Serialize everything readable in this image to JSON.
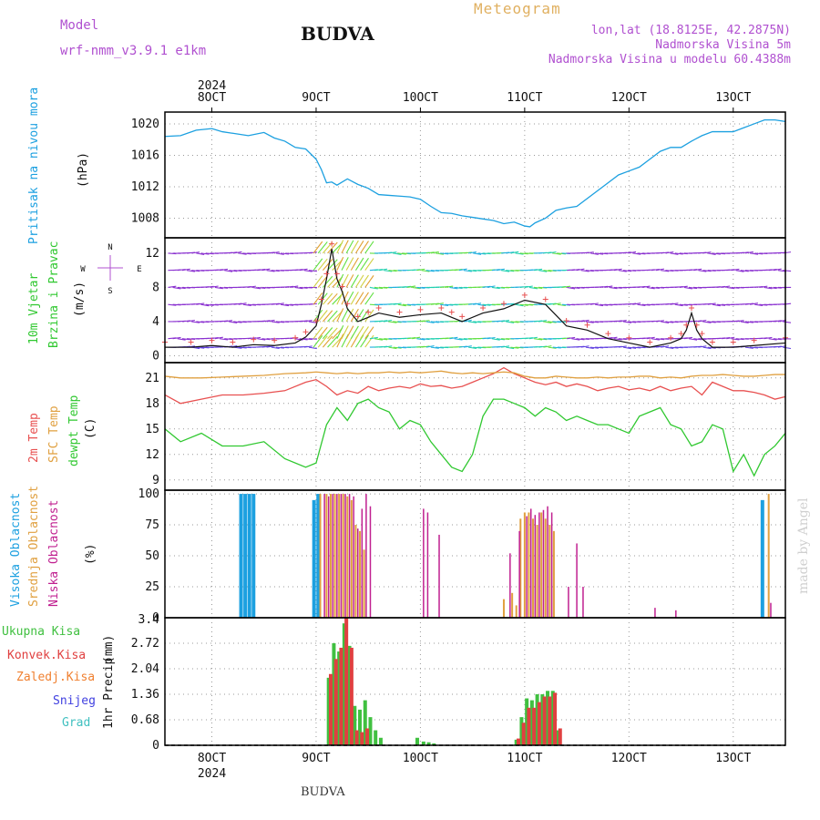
{
  "header": {
    "model_label": "Model",
    "model_name": "wrf-nmm_v3.9.1 e1km",
    "title": "BUDVA",
    "meteogram": "Meteogram",
    "lonlat": "lon,lat (18.8125E, 42.2875N)",
    "elevation": "Nadmorska Visina 5m",
    "model_elevation": "Nadmorska Visina u modelu 60.4388m"
  },
  "footer": {
    "station": "BUDVA",
    "credit": "made by Angel"
  },
  "x_axis": {
    "year": "2024",
    "ticks": [
      "8OCT",
      "9OCT",
      "10OCT",
      "11OCT",
      "12OCT",
      "13OCT"
    ],
    "tick_days": [
      8,
      9,
      10,
      11,
      12,
      13
    ],
    "start_day": 7.55,
    "end_day": 13.5
  },
  "colors": {
    "pressure": "#1ca0e0",
    "temp2m": "#e85050",
    "sfc": "#e0a040",
    "dewpt": "#30c830",
    "high_cloud": "#1ca0e0",
    "mid_cloud": "#e0a040",
    "low_cloud": "#c02090",
    "total_precip": "#40c040",
    "conv_precip": "#e04040",
    "frozen_precip": "#f08030",
    "snow": "#4040e0",
    "graupel": "#40c0c0",
    "wind_axis": "#b050d0"
  },
  "chart_data": [
    {
      "type": "line",
      "name": "pressure-panel",
      "ylabel": "Pritisak na nivou mora",
      "unit": "(hPa)",
      "yticks": [
        1008,
        1012,
        1016,
        1020
      ],
      "ylim": [
        1005.5,
        1021.5
      ],
      "x": [
        7.55,
        7.7,
        7.85,
        8.0,
        8.1,
        8.2,
        8.35,
        8.5,
        8.6,
        8.7,
        8.8,
        8.9,
        9.0,
        9.05,
        9.1,
        9.15,
        9.2,
        9.3,
        9.4,
        9.5,
        9.6,
        9.7,
        9.8,
        9.9,
        10.0,
        10.1,
        10.2,
        10.3,
        10.4,
        10.5,
        10.6,
        10.7,
        10.8,
        10.9,
        11.0,
        11.05,
        11.1,
        11.2,
        11.3,
        11.4,
        11.5,
        11.6,
        11.7,
        11.8,
        11.9,
        12.0,
        12.1,
        12.2,
        12.3,
        12.4,
        12.5,
        12.6,
        12.7,
        12.8,
        12.9,
        13.0,
        13.1,
        13.2,
        13.3,
        13.4,
        13.5
      ],
      "series": [
        {
          "values": [
            1018.4,
            1018.5,
            1019.2,
            1019.4,
            1019.0,
            1018.8,
            1018.5,
            1018.9,
            1018.2,
            1017.8,
            1017.0,
            1016.8,
            1015.5,
            1014.2,
            1012.5,
            1012.6,
            1012.2,
            1013.0,
            1012.3,
            1011.8,
            1011.0,
            1010.9,
            1010.8,
            1010.7,
            1010.4,
            1009.5,
            1008.7,
            1008.6,
            1008.3,
            1008.1,
            1007.9,
            1007.7,
            1007.3,
            1007.5,
            1007.0,
            1006.9,
            1007.4,
            1008.0,
            1009.0,
            1009.3,
            1009.5,
            1010.5,
            1011.5,
            1012.5,
            1013.5,
            1014.0,
            1014.5,
            1015.5,
            1016.5,
            1017.0,
            1017.0,
            1017.8,
            1018.5,
            1019.0,
            1019.0,
            1019.0,
            1019.5,
            1020.0,
            1020.5,
            1020.5,
            1020.3
          ]
        }
      ]
    },
    {
      "type": "line",
      "name": "wind-panel",
      "ylabel_1": "10m Vjetar",
      "ylabel_2": "Brzina i Pravac",
      "unit": "(m/s)",
      "compass": {
        "n": "N",
        "s": "S",
        "w": "W",
        "e": "E"
      },
      "yticks": [
        0,
        4,
        8,
        12
      ],
      "ylim": [
        -0.8,
        13.8
      ],
      "x": [
        7.55,
        7.8,
        8.0,
        8.2,
        8.4,
        8.6,
        8.8,
        8.9,
        9.0,
        9.05,
        9.1,
        9.15,
        9.2,
        9.25,
        9.3,
        9.4,
        9.5,
        9.6,
        9.8,
        10.0,
        10.2,
        10.3,
        10.4,
        10.6,
        10.8,
        11.0,
        11.2,
        11.4,
        11.6,
        11.8,
        12.0,
        12.2,
        12.4,
        12.5,
        12.55,
        12.6,
        12.65,
        12.7,
        12.8,
        13.0,
        13.2,
        13.5
      ],
      "series": [
        {
          "name": "speed",
          "values": [
            1.0,
            1.0,
            1.2,
            1.0,
            1.3,
            1.2,
            1.5,
            2.2,
            3.5,
            6.0,
            9.0,
            12.5,
            9.0,
            7.5,
            5.5,
            4.0,
            4.5,
            5.0,
            4.5,
            4.8,
            5.0,
            4.5,
            4.0,
            5.0,
            5.5,
            6.5,
            6.0,
            3.5,
            3.0,
            2.0,
            1.5,
            1.0,
            1.5,
            2.0,
            3.0,
            5.0,
            3.0,
            2.0,
            1.0,
            1.0,
            1.2,
            1.5
          ]
        }
      ]
    },
    {
      "type": "line",
      "name": "temperature-panel",
      "ylabel_1": "2m Temp",
      "ylabel_2": "SFC Temp",
      "ylabel_3": "dewpt Temp",
      "unit": "(C)",
      "yticks": [
        9,
        12,
        15,
        18,
        21
      ],
      "ylim": [
        7.8,
        22.8
      ],
      "x": [
        7.55,
        7.7,
        7.9,
        8.1,
        8.3,
        8.5,
        8.7,
        8.9,
        9.0,
        9.1,
        9.2,
        9.3,
        9.4,
        9.5,
        9.6,
        9.7,
        9.8,
        9.9,
        10.0,
        10.1,
        10.2,
        10.3,
        10.4,
        10.5,
        10.6,
        10.7,
        10.8,
        10.9,
        11.0,
        11.1,
        11.2,
        11.3,
        11.4,
        11.5,
        11.6,
        11.7,
        11.8,
        11.9,
        12.0,
        12.1,
        12.2,
        12.3,
        12.4,
        12.5,
        12.6,
        12.7,
        12.8,
        12.9,
        13.0,
        13.1,
        13.2,
        13.3,
        13.4,
        13.5
      ],
      "series": [
        {
          "name": "2m Temp",
          "values": [
            19.0,
            18.0,
            18.5,
            19.0,
            19.0,
            19.2,
            19.5,
            20.5,
            20.8,
            20.0,
            19.0,
            19.5,
            19.2,
            20.0,
            19.5,
            19.8,
            20.0,
            19.8,
            20.3,
            20.0,
            20.1,
            19.8,
            20.0,
            20.5,
            21.0,
            21.5,
            22.2,
            21.5,
            21.0,
            20.5,
            20.2,
            20.5,
            20.0,
            20.3,
            20.0,
            19.5,
            19.8,
            20.0,
            19.6,
            19.8,
            19.5,
            20.0,
            19.5,
            19.8,
            20.0,
            19.0,
            20.5,
            20.0,
            19.5,
            19.5,
            19.3,
            19.0,
            18.5,
            18.8
          ]
        },
        {
          "name": "SFC Temp",
          "values": [
            21.2,
            21.0,
            21.0,
            21.1,
            21.2,
            21.3,
            21.5,
            21.6,
            21.7,
            21.6,
            21.5,
            21.6,
            21.5,
            21.6,
            21.6,
            21.7,
            21.6,
            21.7,
            21.6,
            21.7,
            21.8,
            21.6,
            21.5,
            21.6,
            21.5,
            21.6,
            21.7,
            21.6,
            21.2,
            21.0,
            21.0,
            21.2,
            21.1,
            21.0,
            21.0,
            21.1,
            21.0,
            21.1,
            21.1,
            21.2,
            21.2,
            21.0,
            21.1,
            21.0,
            21.2,
            21.3,
            21.3,
            21.4,
            21.3,
            21.2,
            21.2,
            21.3,
            21.4,
            21.4
          ]
        },
        {
          "name": "dewpt Temp",
          "values": [
            15.0,
            13.5,
            14.5,
            13.0,
            13.0,
            13.5,
            11.5,
            10.5,
            11.0,
            15.5,
            17.5,
            16.0,
            18.0,
            18.5,
            17.5,
            17.0,
            15.0,
            16.0,
            15.5,
            13.5,
            12.0,
            10.5,
            10.0,
            12.0,
            16.5,
            18.5,
            18.5,
            18.0,
            17.5,
            16.5,
            17.5,
            17.0,
            16.0,
            16.5,
            16.0,
            15.5,
            15.5,
            15.0,
            14.5,
            16.5,
            17.0,
            17.5,
            15.5,
            15.0,
            13.0,
            13.5,
            15.5,
            15.0,
            10.0,
            12.0,
            9.5,
            12.0,
            13.0,
            14.5
          ]
        }
      ]
    },
    {
      "type": "bar",
      "name": "cloud-panel",
      "ylabel_1": "Visoka Oblacnost",
      "ylabel_2": "Srednja Oblacnost",
      "ylabel_3": "Niska Oblacnost",
      "unit": "(%)",
      "yticks": [
        0,
        25,
        50,
        75,
        100
      ],
      "ylim": [
        0,
        103
      ],
      "series": [
        {
          "name": "high",
          "x": [
            8.28,
            8.32,
            8.36,
            8.4,
            8.98,
            9.02,
            13.28
          ],
          "values": [
            100,
            100,
            100,
            100,
            95,
            100,
            95
          ]
        },
        {
          "name": "mid",
          "x": [
            9.04,
            9.1,
            9.14,
            9.18,
            9.22,
            9.26,
            9.3,
            9.34,
            9.38,
            9.42,
            9.46,
            10.8,
            10.88,
            10.92,
            10.96,
            11.0,
            11.04,
            11.08,
            11.12,
            11.16,
            11.2,
            11.24,
            11.28,
            13.34
          ],
          "values": [
            100,
            100,
            100,
            100,
            100,
            100,
            98,
            95,
            75,
            70,
            55,
            15,
            20,
            10,
            80,
            85,
            85,
            80,
            75,
            85,
            80,
            75,
            70,
            100
          ]
        },
        {
          "name": "low",
          "x": [
            9.08,
            9.12,
            9.16,
            9.2,
            9.24,
            9.28,
            9.32,
            9.36,
            9.4,
            9.44,
            9.48,
            9.52,
            10.03,
            10.07,
            10.18,
            10.86,
            10.95,
            11.02,
            11.06,
            11.1,
            11.14,
            11.18,
            11.22,
            11.26,
            11.42,
            11.5,
            11.56,
            12.25,
            12.45,
            13.36
          ],
          "values": [
            100,
            98,
            100,
            100,
            100,
            100,
            100,
            98,
            72,
            88,
            100,
            90,
            88,
            85,
            67,
            52,
            70,
            82,
            88,
            83,
            85,
            87,
            90,
            85,
            25,
            60,
            25,
            8,
            6,
            12
          ]
        }
      ]
    },
    {
      "type": "bar",
      "name": "precip-panel",
      "ylabel_1": "1hr Precip",
      "unit": "(mm)",
      "top_label": "3.4",
      "yticks": [
        "0",
        "0.68",
        "1.36",
        "2.04",
        "2.72",
        "3.4"
      ],
      "ylim": [
        0,
        3.4
      ],
      "legend": [
        "Ukupna Kisa",
        "Konvek.Kisa",
        "Zaledj.Kisa",
        "Snijeg",
        "Grad"
      ],
      "series": [
        {
          "name": "Ukupna Kisa",
          "x": [
            9.12,
            9.17,
            9.22,
            9.27,
            9.32,
            9.37,
            9.42,
            9.47,
            9.52,
            9.57,
            9.62,
            9.97,
            10.03,
            10.08,
            10.13,
            10.92,
            10.97,
            11.02,
            11.07,
            11.12,
            11.17,
            11.22,
            11.27,
            11.32
          ],
          "values": [
            1.8,
            2.72,
            2.5,
            3.25,
            2.65,
            1.05,
            0.95,
            1.2,
            0.75,
            0.4,
            0.2,
            0.2,
            0.1,
            0.08,
            0.05,
            0.15,
            0.75,
            1.25,
            1.2,
            1.36,
            1.36,
            1.45,
            1.45,
            0.4
          ]
        },
        {
          "name": "Konvek.Kisa",
          "x": [
            9.14,
            9.19,
            9.24,
            9.29,
            9.34,
            9.39,
            9.44,
            9.49,
            10.94,
            10.99,
            11.04,
            11.09,
            11.14,
            11.19,
            11.24,
            11.29,
            11.34
          ],
          "values": [
            1.9,
            2.3,
            2.6,
            3.4,
            2.6,
            0.4,
            0.35,
            0.45,
            0.18,
            0.6,
            1.0,
            1.0,
            1.15,
            1.3,
            1.3,
            1.4,
            0.45
          ]
        }
      ]
    }
  ]
}
